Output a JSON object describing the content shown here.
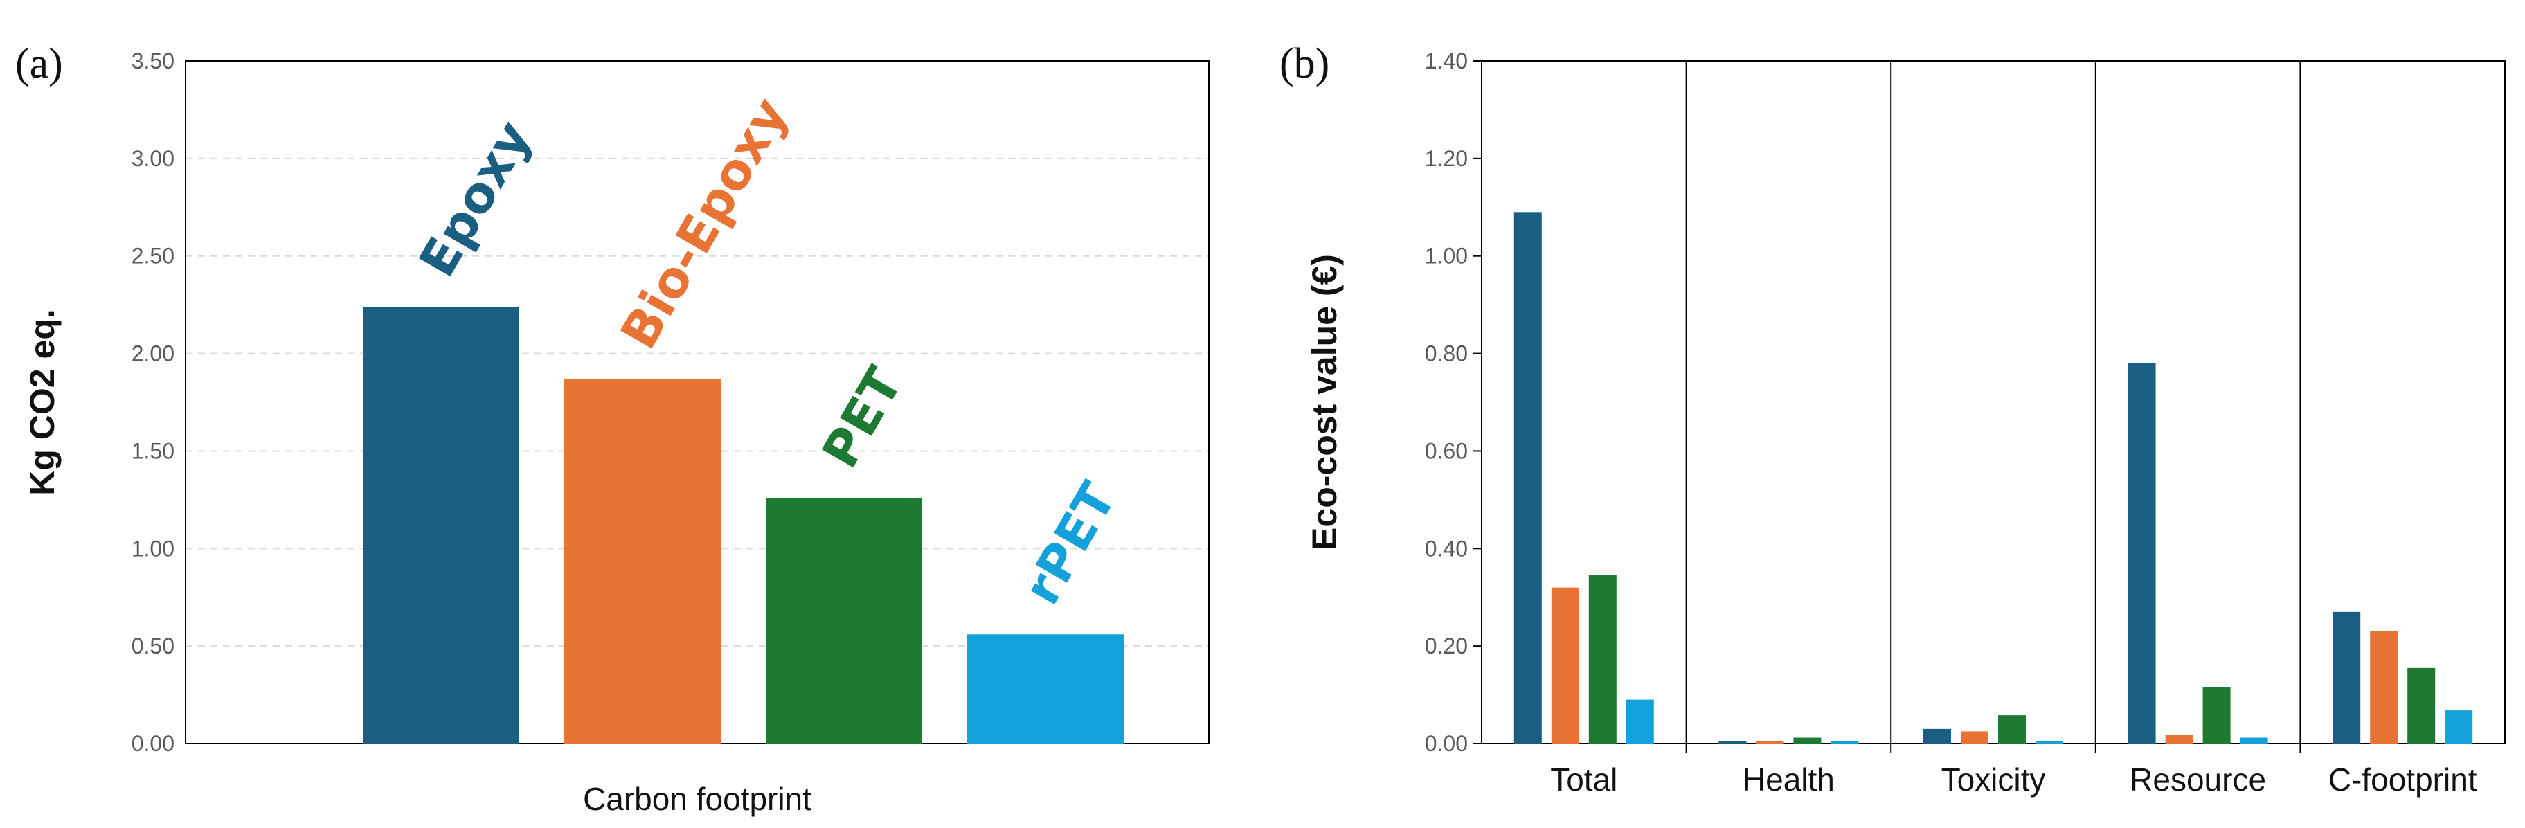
{
  "chart_data": [
    {
      "panel": "(a)",
      "type": "bar",
      "title": "",
      "xlabel": "Carbon footprint",
      "ylabel": "Kg CO2 eq.",
      "ylim": [
        0,
        3.5
      ],
      "yticks": [
        "0.00",
        "0.50",
        "1.00",
        "1.50",
        "2.00",
        "2.50",
        "3.00",
        "3.50"
      ],
      "grid": true,
      "categories": [
        "Epoxy",
        "Bio-Epoxy",
        "PET",
        "rPET"
      ],
      "values": [
        2.24,
        1.87,
        1.26,
        0.56
      ],
      "colors": [
        "#1a5e82",
        "#e87335",
        "#1e7a32",
        "#12a2d9"
      ],
      "data_labels": [
        "Epoxy",
        "Bio-Epoxy",
        "PET",
        "rPET"
      ]
    },
    {
      "panel": "(b)",
      "type": "bar",
      "title": "",
      "xlabel": "",
      "ylabel": "Eco-cost value (€)",
      "ylim": [
        0,
        1.4
      ],
      "yticks": [
        "0.00",
        "0.20",
        "0.40",
        "0.60",
        "0.80",
        "1.00",
        "1.20",
        "1.40"
      ],
      "grid": false,
      "categories": [
        "Total",
        "Health",
        "Toxicity",
        "Resource",
        "C-footprint"
      ],
      "series": [
        {
          "name": "Epoxy",
          "color": "#1a5e82",
          "values": [
            1.09,
            0.005,
            0.03,
            0.78,
            0.27
          ]
        },
        {
          "name": "Bio-Epoxy",
          "color": "#e87335",
          "values": [
            0.32,
            0.003,
            0.025,
            0.018,
            0.23
          ]
        },
        {
          "name": "PET",
          "color": "#1e7a32",
          "values": [
            0.345,
            0.012,
            0.058,
            0.115,
            0.155
          ]
        },
        {
          "name": "rPET",
          "color": "#12a2d9",
          "values": [
            0.09,
            0.002,
            0.004,
            0.012,
            0.068
          ]
        }
      ]
    }
  ]
}
